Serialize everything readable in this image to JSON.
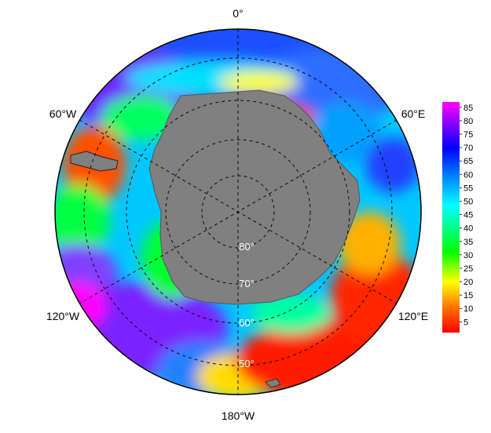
{
  "map": {
    "projection": "south-polar-stereographic",
    "longitude_labels": [
      "0°",
      "60°E",
      "120°E",
      "180°W",
      "120°W",
      "60°W"
    ],
    "latitude_labels": [
      "80°",
      "70°",
      "60°",
      "50°"
    ],
    "land_color": "#808080",
    "graticule_style": "dashed"
  },
  "colorbar": {
    "ticks": [
      "5",
      "10",
      "15",
      "20",
      "25",
      "30",
      "35",
      "40",
      "45",
      "50",
      "55",
      "60",
      "65",
      "70",
      "75",
      "80",
      "85"
    ],
    "min": 1,
    "max": 87,
    "colors": [
      "#ff0000",
      "#ff8000",
      "#ffff00",
      "#00ff00",
      "#00ffff",
      "#0080ff",
      "#0000ff",
      "#8000ff",
      "#ff00ff"
    ]
  }
}
